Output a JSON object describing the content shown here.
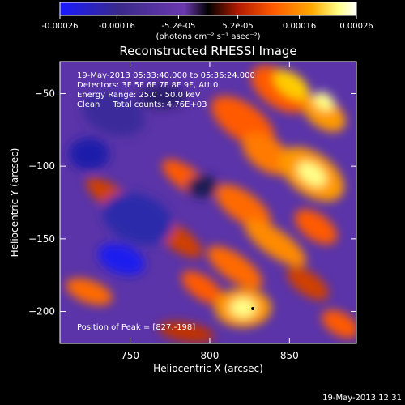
{
  "chart_data": {
    "type": "heatmap",
    "title": "Reconstructed RHESSI Image",
    "xlabel": "Heliocentric X (arcsec)",
    "ylabel": "Heliocentric Y (arcsec)",
    "xlim": [
      706,
      892
    ],
    "ylim": [
      -222,
      -28
    ],
    "x_ticks": [
      750,
      800,
      850
    ],
    "y_ticks": [
      -50,
      -100,
      -150,
      -200
    ],
    "colorbar": {
      "range": [
        -0.00026,
        0.00026
      ],
      "tick_values": [
        -0.00026,
        -0.00016,
        -5.2e-05,
        5.2e-05,
        0.00016,
        0.00026
      ],
      "tick_labels": [
        "-0.00026",
        "-0.00016",
        "-5.2e-05",
        "5.2e-05",
        "0.00016",
        "0.00026"
      ],
      "units_label": "(photons cm⁻² s⁻¹ asec⁻²)"
    },
    "annotations": [
      "19-May-2013 05:33:40.000 to 05:36:24.000",
      "Detectors: 3F 5F 6F 7F 8F 9F, Att 0",
      "Energy Range: 25.0 - 50.0 keV",
      "Clean     Total counts: 4.76E+03"
    ],
    "peak_label": "Position of Peak = [827,-198]",
    "peak": [
      827,
      -198
    ],
    "colormap_stops": [
      "#1a1aff",
      "#1a1a99",
      "#3a2a8a",
      "#6a38b0",
      "#000000",
      "#b01a00",
      "#ff5a00",
      "#ffaa00",
      "#ffff88",
      "#ffffff"
    ]
  },
  "timestamp": "19-May-2013 12:31"
}
